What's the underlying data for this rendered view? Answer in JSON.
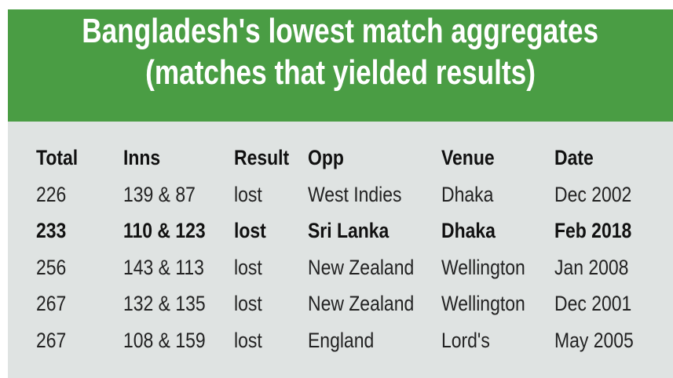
{
  "header": {
    "title_lines": [
      "Bangladesh's lowest match aggregates",
      "(matches that yielded results)"
    ]
  },
  "table": {
    "columns": [
      "Total",
      "Inns",
      "Result",
      "Opp",
      "Venue",
      "Date"
    ],
    "rows": [
      {
        "bold": false,
        "cells": [
          "226",
          "139 & 87",
          "lost",
          "West Indies",
          "Dhaka",
          "Dec 2002"
        ]
      },
      {
        "bold": true,
        "cells": [
          "233",
          "110 & 123",
          "lost",
          "Sri Lanka",
          "Dhaka",
          "Feb 2018"
        ]
      },
      {
        "bold": false,
        "cells": [
          "256",
          "143 & 113",
          "lost",
          "New Zealand",
          "Wellington",
          "Jan 2008"
        ]
      },
      {
        "bold": false,
        "cells": [
          "267",
          "132 & 135",
          "lost",
          "New Zealand",
          "Wellington",
          "Dec 2001"
        ]
      },
      {
        "bold": false,
        "cells": [
          "267",
          "108 & 159",
          "lost",
          "England",
          "Lord's",
          "May 2005"
        ]
      }
    ]
  }
}
